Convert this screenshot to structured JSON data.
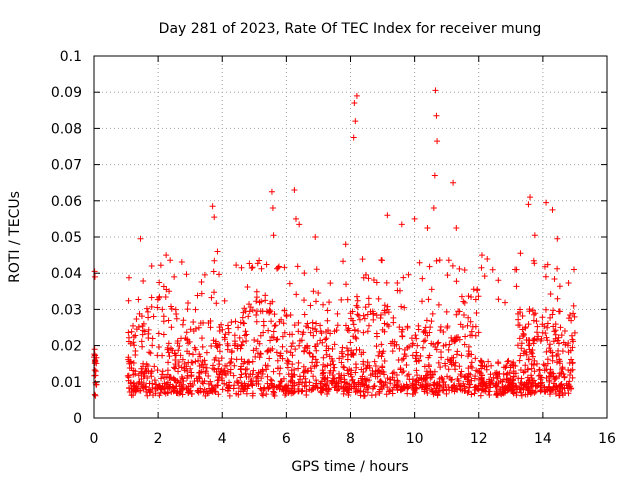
{
  "chart_data": {
    "type": "scatter",
    "title": "Day 281 of 2023, Rate Of TEC Index for receiver mung",
    "xlabel": "GPS time / hours",
    "ylabel": "ROTI / TECUs",
    "xlim": [
      0,
      16
    ],
    "ylim": [
      0,
      0.1
    ],
    "xticks": [
      0,
      2,
      4,
      6,
      8,
      10,
      12,
      14,
      16
    ],
    "xtick_labels": [
      "0",
      "2",
      "4",
      "6",
      "8",
      "10",
      "12",
      "14",
      "16"
    ],
    "yticks": [
      0,
      0.01,
      0.02,
      0.03,
      0.04,
      0.05,
      0.06,
      0.07,
      0.08,
      0.09,
      0.1
    ],
    "ytick_labels": [
      "0",
      "0.01",
      "0.02",
      "0.03",
      "0.04",
      "0.05",
      "0.06",
      "0.07",
      "0.08",
      "0.09",
      "0.1"
    ],
    "grid": true,
    "marker": "+",
    "marker_color": "#ff0000",
    "series": [
      {
        "name": "ROTI",
        "color": "#ff0000",
        "segments": [
          [
            0.0,
            0.08
          ],
          [
            1.05,
            15.0
          ]
        ],
        "peaks": [
          {
            "x": 0.02,
            "y": 0.0405
          },
          {
            "x": 0.03,
            "y": 0.039
          },
          {
            "x": 0.02,
            "y": 0.019
          },
          {
            "x": 0.03,
            "y": 0.0155
          },
          {
            "x": 1.45,
            "y": 0.0495
          },
          {
            "x": 1.8,
            "y": 0.042
          },
          {
            "x": 2.25,
            "y": 0.045
          },
          {
            "x": 2.5,
            "y": 0.039
          },
          {
            "x": 3.7,
            "y": 0.0585
          },
          {
            "x": 3.75,
            "y": 0.0555
          },
          {
            "x": 3.85,
            "y": 0.046
          },
          {
            "x": 4.6,
            "y": 0.0415
          },
          {
            "x": 5.15,
            "y": 0.0435
          },
          {
            "x": 5.55,
            "y": 0.0625
          },
          {
            "x": 5.58,
            "y": 0.058
          },
          {
            "x": 5.6,
            "y": 0.0505
          },
          {
            "x": 6.25,
            "y": 0.063
          },
          {
            "x": 6.3,
            "y": 0.055
          },
          {
            "x": 6.4,
            "y": 0.0535
          },
          {
            "x": 6.9,
            "y": 0.05
          },
          {
            "x": 7.85,
            "y": 0.048
          },
          {
            "x": 8.12,
            "y": 0.087
          },
          {
            "x": 8.2,
            "y": 0.089
          },
          {
            "x": 8.15,
            "y": 0.082
          },
          {
            "x": 8.1,
            "y": 0.0775
          },
          {
            "x": 9.15,
            "y": 0.056
          },
          {
            "x": 9.6,
            "y": 0.0535
          },
          {
            "x": 10.0,
            "y": 0.055
          },
          {
            "x": 10.4,
            "y": 0.0525
          },
          {
            "x": 10.65,
            "y": 0.0905
          },
          {
            "x": 10.68,
            "y": 0.0835
          },
          {
            "x": 10.7,
            "y": 0.0765
          },
          {
            "x": 10.63,
            "y": 0.067
          },
          {
            "x": 10.6,
            "y": 0.058
          },
          {
            "x": 11.2,
            "y": 0.065
          },
          {
            "x": 11.3,
            "y": 0.0525
          },
          {
            "x": 12.1,
            "y": 0.045
          },
          {
            "x": 13.3,
            "y": 0.0455
          },
          {
            "x": 13.6,
            "y": 0.061
          },
          {
            "x": 13.55,
            "y": 0.059
          },
          {
            "x": 13.75,
            "y": 0.0505
          },
          {
            "x": 14.1,
            "y": 0.0595
          },
          {
            "x": 14.3,
            "y": 0.0575
          },
          {
            "x": 14.45,
            "y": 0.0495
          }
        ]
      }
    ]
  }
}
